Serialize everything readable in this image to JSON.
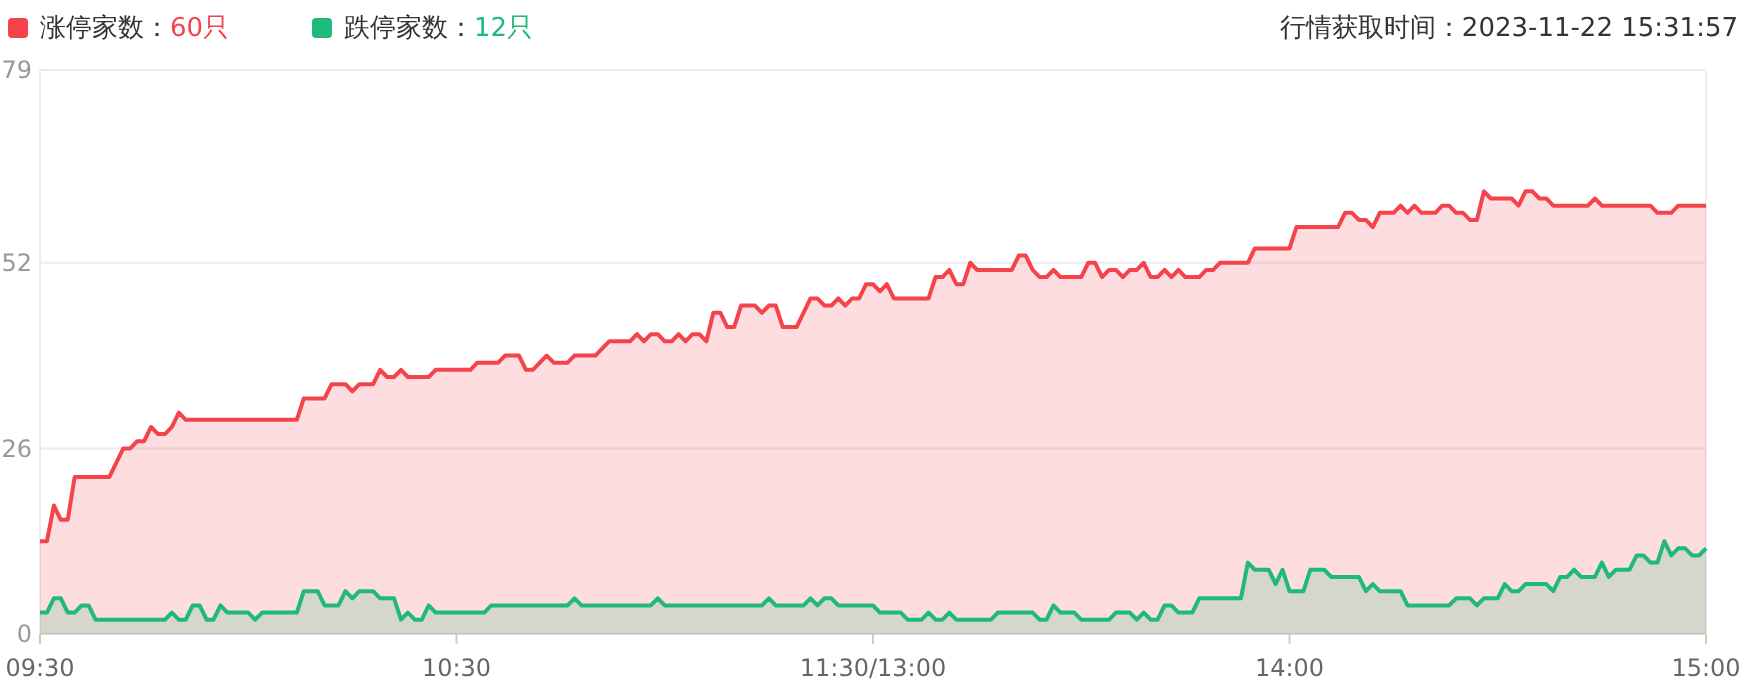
{
  "chart_data": {
    "type": "area",
    "annotations": [
      "行情获取时间：2023-11-22 15:31:57"
    ],
    "categories": [
      "09:30",
      null,
      null,
      null,
      null,
      null,
      null,
      null,
      null,
      null,
      null,
      null,
      null,
      null,
      null,
      null,
      null,
      null,
      null,
      null,
      null,
      null,
      null,
      null,
      null,
      null,
      null,
      null,
      null,
      null,
      null,
      null,
      null,
      null,
      null,
      null,
      null,
      null,
      null,
      null,
      null,
      null,
      null,
      null,
      null,
      null,
      null,
      null,
      null,
      null,
      null,
      null,
      null,
      null,
      null,
      null,
      null,
      null,
      null,
      null,
      "10:30",
      null,
      null,
      null,
      null,
      null,
      null,
      null,
      null,
      null,
      null,
      null,
      null,
      null,
      null,
      null,
      null,
      null,
      null,
      null,
      null,
      null,
      null,
      null,
      null,
      null,
      null,
      null,
      null,
      null,
      null,
      null,
      null,
      null,
      null,
      null,
      null,
      null,
      null,
      null,
      null,
      null,
      null,
      null,
      null,
      null,
      null,
      null,
      null,
      null,
      null,
      null,
      null,
      null,
      null,
      null,
      null,
      null,
      null,
      null,
      "11:30/13:00",
      null,
      null,
      null,
      null,
      null,
      null,
      null,
      null,
      null,
      null,
      null,
      null,
      null,
      null,
      null,
      null,
      null,
      null,
      null,
      null,
      null,
      null,
      null,
      null,
      null,
      null,
      null,
      null,
      null,
      null,
      null,
      null,
      null,
      null,
      null,
      null,
      null,
      null,
      null,
      null,
      null,
      null,
      null,
      null,
      null,
      null,
      null,
      null,
      null,
      null,
      null,
      null,
      null,
      null,
      null,
      null,
      null,
      null,
      null,
      "14:00",
      null,
      null,
      null,
      null,
      null,
      null,
      null,
      null,
      null,
      null,
      null,
      null,
      null,
      null,
      null,
      null,
      null,
      null,
      null,
      null,
      null,
      null,
      null,
      null,
      null,
      null,
      null,
      null,
      null,
      null,
      null,
      null,
      null,
      null,
      null,
      null,
      null,
      null,
      null,
      null,
      null,
      null,
      null,
      null,
      null,
      null,
      null,
      null,
      null,
      null,
      null,
      null,
      null,
      null,
      null,
      null,
      null,
      null,
      null,
      "15:00"
    ],
    "ylim": [
      0,
      79
    ],
    "yticks": [
      0,
      26,
      52,
      79
    ],
    "grid": "y",
    "legend": "top left",
    "series": [
      {
        "name": "涨停家数：60只",
        "color": "#f5434c",
        "values": [
          13,
          13,
          18,
          16,
          16,
          22,
          22,
          22,
          22,
          22,
          22,
          24,
          26,
          26,
          27,
          27,
          29,
          28,
          28,
          29,
          31,
          30,
          30,
          30,
          30,
          30,
          30,
          30,
          30,
          30,
          30,
          30,
          30,
          30,
          30,
          30,
          30,
          30,
          33,
          33,
          33,
          33,
          35,
          35,
          35,
          34,
          35,
          35,
          35,
          37,
          36,
          36,
          37,
          36,
          36,
          36,
          36,
          37,
          37,
          37,
          37,
          37,
          37,
          38,
          38,
          38,
          38,
          39,
          39,
          39,
          37,
          37,
          38,
          39,
          38,
          38,
          38,
          39,
          39,
          39,
          39,
          40,
          41,
          41,
          41,
          41,
          42,
          41,
          42,
          42,
          41,
          41,
          42,
          41,
          42,
          42,
          41,
          45,
          45,
          43,
          43,
          46,
          46,
          46,
          45,
          46,
          46,
          43,
          43,
          43,
          45,
          47,
          47,
          46,
          46,
          47,
          46,
          47,
          47,
          49,
          49,
          48,
          49,
          47,
          47,
          47,
          47,
          47,
          47,
          50,
          50,
          51,
          49,
          49,
          52,
          51,
          51,
          51,
          51,
          51,
          51,
          53,
          53,
          51,
          50,
          50,
          51,
          50,
          50,
          50,
          50,
          52,
          52,
          50,
          51,
          51,
          50,
          51,
          51,
          52,
          50,
          50,
          51,
          50,
          51,
          50,
          50,
          50,
          51,
          51,
          52,
          52,
          52,
          52,
          52,
          54,
          54,
          54,
          54,
          54,
          54,
          57,
          57,
          57,
          57,
          57,
          57,
          57,
          59,
          59,
          58,
          58,
          57,
          59,
          59,
          59,
          60,
          59,
          60,
          59,
          59,
          59,
          60,
          60,
          59,
          59,
          58,
          58,
          62,
          61,
          61,
          61,
          61,
          60,
          62,
          62,
          61,
          61,
          60,
          60,
          60,
          60,
          60,
          60,
          61,
          60,
          60,
          60,
          60,
          60,
          60,
          60,
          60,
          59,
          59,
          59,
          60,
          60,
          60,
          60,
          60
        ]
      },
      {
        "name": "跌停家数：12只",
        "color": "#1fb97a",
        "values": [
          3,
          3,
          5,
          5,
          3,
          3,
          4,
          4,
          2,
          2,
          2,
          2,
          2,
          2,
          2,
          2,
          2,
          2,
          2,
          3,
          2,
          2,
          4,
          4,
          2,
          2,
          4,
          3,
          3,
          3,
          3,
          2,
          3,
          3,
          3,
          3,
          3,
          3,
          6,
          6,
          6,
          4,
          4,
          4,
          6,
          5,
          6,
          6,
          6,
          5,
          5,
          5,
          2,
          3,
          2,
          2,
          4,
          3,
          3,
          3,
          3,
          3,
          3,
          3,
          3,
          4,
          4,
          4,
          4,
          4,
          4,
          4,
          4,
          4,
          4,
          4,
          4,
          5,
          4,
          4,
          4,
          4,
          4,
          4,
          4,
          4,
          4,
          4,
          4,
          5,
          4,
          4,
          4,
          4,
          4,
          4,
          4,
          4,
          4,
          4,
          4,
          4,
          4,
          4,
          4,
          5,
          4,
          4,
          4,
          4,
          4,
          5,
          4,
          5,
          5,
          4,
          4,
          4,
          4,
          4,
          4,
          3,
          3,
          3,
          3,
          2,
          2,
          2,
          3,
          2,
          2,
          3,
          2,
          2,
          2,
          2,
          2,
          2,
          3,
          3,
          3,
          3,
          3,
          3,
          2,
          2,
          4,
          3,
          3,
          3,
          2,
          2,
          2,
          2,
          2,
          3,
          3,
          3,
          2,
          3,
          2,
          2,
          4,
          4,
          3,
          3,
          3,
          5,
          5,
          5,
          5,
          5,
          5,
          5,
          10,
          9,
          9,
          9,
          7,
          9,
          6,
          6,
          6,
          9,
          9,
          9,
          8,
          8,
          8,
          8,
          8,
          6,
          7,
          6,
          6,
          6,
          6,
          4,
          4,
          4,
          4,
          4,
          4,
          4,
          5,
          5,
          5,
          4,
          5,
          5,
          5,
          7,
          6,
          6,
          7,
          7,
          7,
          7,
          6,
          8,
          8,
          9,
          8,
          8,
          8,
          10,
          8,
          9,
          9,
          9,
          11,
          11,
          10,
          10,
          13,
          11,
          12,
          12,
          11,
          11,
          12
        ]
      }
    ]
  }
}
